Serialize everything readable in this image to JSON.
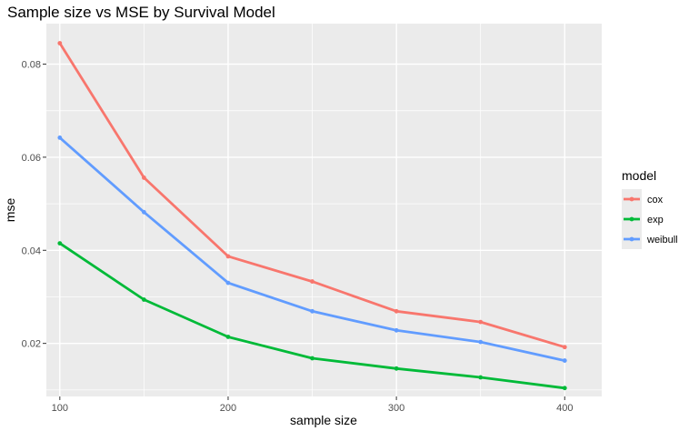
{
  "chart_data": {
    "type": "line",
    "title": "Sample size vs MSE by Survival Model",
    "xlabel": "sample size",
    "ylabel": "mse",
    "x": [
      100,
      150,
      200,
      250,
      300,
      350,
      400
    ],
    "xlim": [
      92,
      422
    ],
    "ylim": [
      0.0086,
      0.0887
    ],
    "x_ticks": [
      100,
      200,
      300,
      400
    ],
    "x_tick_labels": [
      "100",
      "200",
      "300",
      "400"
    ],
    "y_ticks": [
      0.02,
      0.04,
      0.06,
      0.08
    ],
    "y_tick_labels": [
      "0.02",
      "0.04",
      "0.06",
      "0.08"
    ],
    "grid": true,
    "legend": {
      "title": "model",
      "position": "right"
    },
    "series": [
      {
        "name": "cox",
        "color": "#F8766D",
        "values": [
          0.0845,
          0.0556,
          0.0387,
          0.0333,
          0.0269,
          0.0246,
          0.0192
        ]
      },
      {
        "name": "exp",
        "color": "#00BA38",
        "values": [
          0.0415,
          0.0294,
          0.0214,
          0.0168,
          0.0146,
          0.0127,
          0.0104
        ]
      },
      {
        "name": "weibull",
        "color": "#619CFF",
        "values": [
          0.0642,
          0.0482,
          0.033,
          0.0269,
          0.0228,
          0.0203,
          0.0163
        ]
      }
    ],
    "panel_color": "#EBEBEB",
    "grid_color": "#FFFFFF"
  }
}
